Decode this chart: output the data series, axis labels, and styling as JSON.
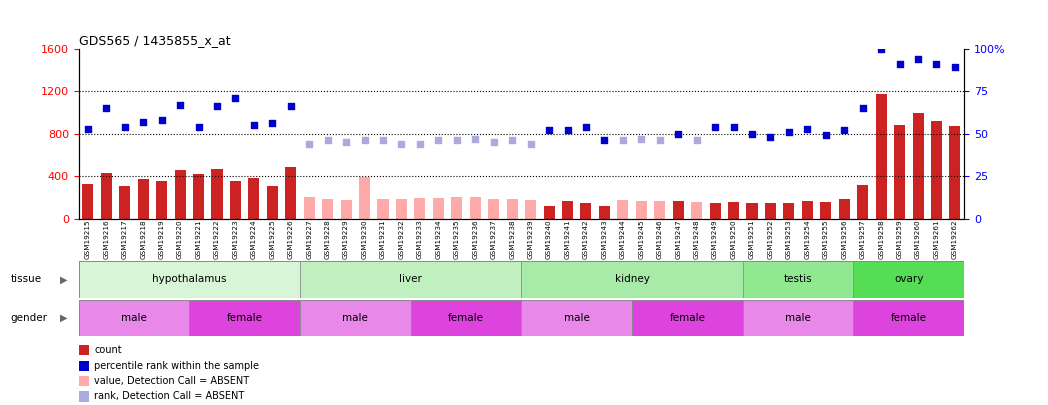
{
  "title": "GDS565 / 1435855_x_at",
  "samples": [
    "GSM19215",
    "GSM19216",
    "GSM19217",
    "GSM19218",
    "GSM19219",
    "GSM19220",
    "GSM19221",
    "GSM19222",
    "GSM19223",
    "GSM19224",
    "GSM19225",
    "GSM19226",
    "GSM19227",
    "GSM19228",
    "GSM19229",
    "GSM19230",
    "GSM19231",
    "GSM19232",
    "GSM19233",
    "GSM19234",
    "GSM19235",
    "GSM19236",
    "GSM19237",
    "GSM19238",
    "GSM19239",
    "GSM19240",
    "GSM19241",
    "GSM19242",
    "GSM19243",
    "GSM19244",
    "GSM19245",
    "GSM19246",
    "GSM19247",
    "GSM19248",
    "GSM19249",
    "GSM19250",
    "GSM19251",
    "GSM19252",
    "GSM19253",
    "GSM19254",
    "GSM19255",
    "GSM19256",
    "GSM19257",
    "GSM19258",
    "GSM19259",
    "GSM19260",
    "GSM19261",
    "GSM19262"
  ],
  "bar_values": [
    330,
    430,
    310,
    370,
    350,
    460,
    420,
    470,
    350,
    380,
    310,
    490,
    200,
    190,
    180,
    390,
    190,
    185,
    195,
    195,
    200,
    200,
    190,
    185,
    180,
    115,
    165,
    150,
    115,
    175,
    170,
    165,
    165,
    160,
    150,
    160,
    150,
    145,
    150,
    170,
    155,
    190,
    320,
    1170,
    880,
    990,
    920,
    870
  ],
  "bar_absent": [
    false,
    false,
    false,
    false,
    false,
    false,
    false,
    false,
    false,
    false,
    false,
    false,
    true,
    true,
    true,
    true,
    true,
    true,
    true,
    true,
    true,
    true,
    true,
    true,
    true,
    false,
    false,
    false,
    false,
    true,
    true,
    true,
    false,
    true,
    false,
    false,
    false,
    false,
    false,
    false,
    false,
    false,
    false,
    false,
    false,
    false,
    false,
    false
  ],
  "rank_pct": [
    53,
    65,
    54,
    57,
    58,
    67,
    54,
    66,
    71,
    55,
    56,
    66,
    44,
    46,
    45,
    46,
    46,
    44,
    44,
    46,
    46,
    47,
    45,
    46,
    44,
    52,
    52,
    54,
    46,
    46,
    47,
    46,
    50,
    46,
    54,
    54,
    50,
    48,
    51,
    53,
    49,
    52,
    65,
    100,
    91,
    94,
    91,
    89
  ],
  "rank_absent": [
    false,
    false,
    false,
    false,
    false,
    false,
    false,
    false,
    false,
    false,
    false,
    false,
    true,
    true,
    true,
    true,
    true,
    true,
    true,
    true,
    true,
    true,
    true,
    true,
    true,
    false,
    false,
    false,
    false,
    true,
    true,
    true,
    false,
    true,
    false,
    false,
    false,
    false,
    false,
    false,
    false,
    false,
    false,
    false,
    false,
    false,
    false,
    false
  ],
  "tissues": [
    [
      "hypothalamus",
      0,
      11
    ],
    [
      "liver",
      12,
      23
    ],
    [
      "kidney",
      24,
      35
    ],
    [
      "testis",
      36,
      41
    ],
    [
      "ovary",
      42,
      47
    ]
  ],
  "tissue_colors": [
    "#d8f5d8",
    "#c0f0c0",
    "#a8eaa8",
    "#90e890",
    "#55dd55"
  ],
  "genders": [
    [
      "male",
      0,
      5
    ],
    [
      "female",
      6,
      11
    ],
    [
      "male",
      12,
      17
    ],
    [
      "female",
      18,
      23
    ],
    [
      "male",
      24,
      29
    ],
    [
      "female",
      30,
      35
    ],
    [
      "male",
      36,
      41
    ],
    [
      "female",
      42,
      47
    ]
  ],
  "gender_male_color": "#e888e8",
  "gender_female_color": "#dd44dd",
  "bar_color_present": "#cc2222",
  "bar_color_absent": "#ffaaaa",
  "dot_color_present": "#0000cc",
  "dot_color_absent": "#aaaadd",
  "ylim_left": [
    0,
    1600
  ],
  "ylim_right": [
    0,
    100
  ],
  "yticks_left": [
    0,
    400,
    800,
    1200,
    1600
  ],
  "yticks_right": [
    0,
    25,
    50,
    75,
    100
  ],
  "grid_pct": [
    25,
    50,
    75
  ]
}
